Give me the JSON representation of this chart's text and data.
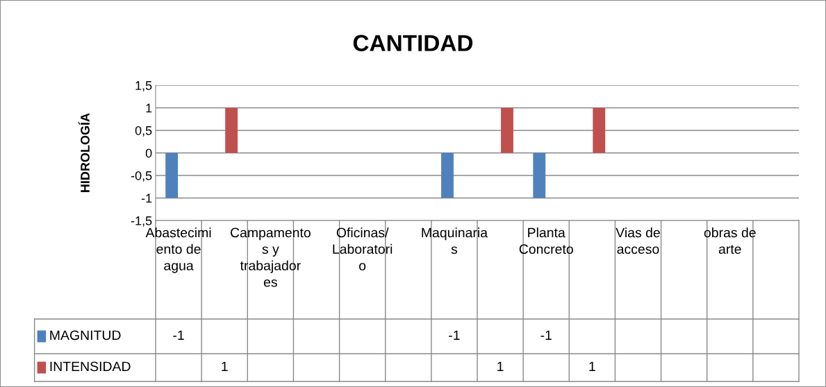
{
  "chart_data": {
    "type": "bar",
    "title": "CANTIDAD",
    "ylabel": "HIDROLOGÍA",
    "categories": [
      "Abastecimiento de agua",
      null,
      "Campamentos y trabajadores",
      null,
      "Oficinas/ Laboratorio",
      null,
      "Maquinarias",
      null,
      "Planta Concreto",
      null,
      "Vias de acceso",
      null,
      "obras de arte",
      null
    ],
    "series": [
      {
        "name": "MAGNITUD",
        "color": "#4f81bd",
        "values": [
          -1,
          null,
          null,
          null,
          null,
          null,
          -1,
          null,
          -1,
          null,
          null,
          null,
          null,
          null
        ]
      },
      {
        "name": "INTENSIDAD",
        "color": "#c0504d",
        "values": [
          null,
          1,
          null,
          null,
          null,
          null,
          null,
          1,
          null,
          1,
          null,
          null,
          null,
          null
        ]
      }
    ],
    "ylim": [
      -1.5,
      1.5
    ],
    "yticks": [
      {
        "value": 1.5,
        "label": "1,5"
      },
      1,
      {
        "value": 0.5,
        "label": "0,5"
      },
      0,
      {
        "value": -0.5,
        "label": "-0,5"
      },
      -1,
      {
        "value": -1.5,
        "label": "-1,5"
      }
    ],
    "grid": "y",
    "legend": "bottom",
    "data_labels": true
  }
}
